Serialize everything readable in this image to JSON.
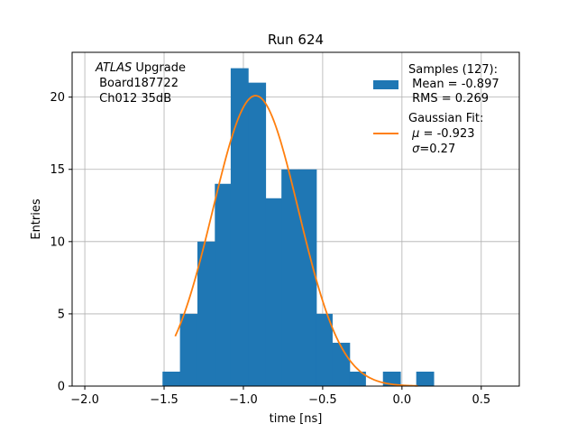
{
  "chart_data": {
    "type": "bar",
    "title": "Run 624",
    "xlabel": "time [ns]",
    "ylabel": "Entries",
    "xlim": [
      -2.08,
      0.74
    ],
    "ylim": [
      0,
      23.1
    ],
    "grid": true,
    "xticks": [
      -2.0,
      -1.5,
      -1.0,
      -0.5,
      0.0,
      0.5
    ],
    "xtick_labels": [
      "−2.0",
      "−1.5",
      "−1.0",
      "−0.5",
      "0.0",
      "0.5"
    ],
    "yticks": [
      0,
      5,
      10,
      15,
      20
    ],
    "ytick_labels": [
      "0",
      "5",
      "10",
      "15",
      "20"
    ],
    "annotation": {
      "italic": "ATLAS",
      "line1_rest": " Upgrade",
      "line2": " Board187722",
      "line3": " Ch012 35dB"
    },
    "histogram": {
      "color": "#1f77b4",
      "bins": [
        {
          "x0": -1.51,
          "x1": -1.4,
          "count": 1
        },
        {
          "x0": -1.4,
          "x1": -1.29,
          "count": 5
        },
        {
          "x0": -1.29,
          "x1": -1.18,
          "count": 10
        },
        {
          "x0": -1.18,
          "x1": -1.08,
          "count": 14
        },
        {
          "x0": -1.08,
          "x1": -0.97,
          "count": 22
        },
        {
          "x0": -0.97,
          "x1": -0.86,
          "count": 21
        },
        {
          "x0": -0.86,
          "x1": -0.76,
          "count": 13
        },
        {
          "x0": -0.76,
          "x1": -0.65,
          "count": 15
        },
        {
          "x0": -0.65,
          "x1": -0.54,
          "count": 15
        },
        {
          "x0": -0.54,
          "x1": -0.44,
          "count": 5
        },
        {
          "x0": -0.44,
          "x1": -0.33,
          "count": 3
        },
        {
          "x0": -0.33,
          "x1": -0.23,
          "count": 1
        },
        {
          "x0": -0.23,
          "x1": -0.12,
          "count": 0
        },
        {
          "x0": -0.12,
          "x1": -0.01,
          "count": 1
        },
        {
          "x0": -0.01,
          "x1": 0.09,
          "count": 0
        },
        {
          "x0": 0.09,
          "x1": 0.2,
          "count": 1
        }
      ]
    },
    "fit": {
      "color": "#ff7f0e",
      "amplitude": 20.1,
      "mu": -0.923,
      "sigma": 0.27,
      "x_range": [
        -1.43,
        0.1
      ]
    },
    "legend": {
      "position": "top-right",
      "samples_title": "Samples (127):",
      "samples_mean": " Mean = -0.897",
      "samples_rms": " RMS = 0.269",
      "fit_title": "Gaussian Fit:",
      "fit_mu_symbol": "μ",
      "fit_mu_rest": " = -0.923",
      "fit_sigma_symbol": "σ",
      "fit_sigma_rest": "=0.27"
    }
  }
}
